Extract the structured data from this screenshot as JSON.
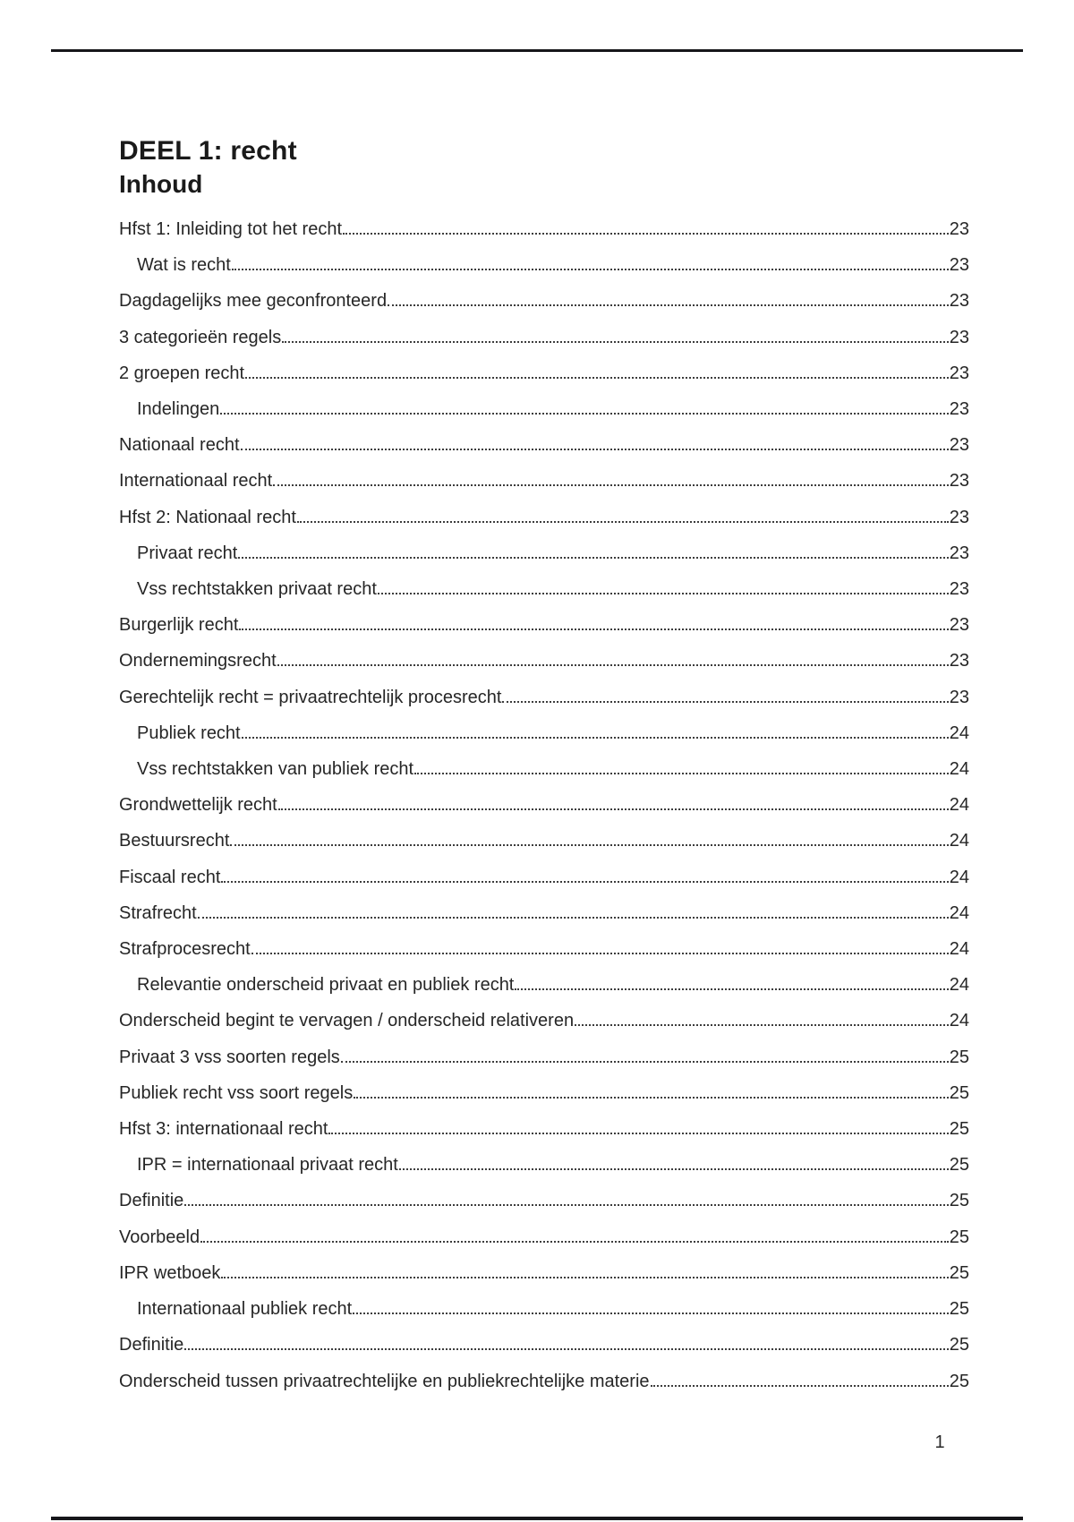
{
  "document": {
    "title": "DEEL 1: recht",
    "toc_heading": "Inhoud",
    "footer_page_number": "1"
  },
  "toc": {
    "entries": [
      {
        "label": "Hfst 1: Inleiding tot het recht",
        "page": "23",
        "level": 1
      },
      {
        "label": "Wat is recht",
        "page": "23",
        "level": 2
      },
      {
        "label": "Dagdagelijks mee geconfronteerd",
        "page": "23",
        "level": 1
      },
      {
        "label": "3 categorieën regels",
        "page": "23",
        "level": 1
      },
      {
        "label": "2 groepen recht",
        "page": "23",
        "level": 1
      },
      {
        "label": "Indelingen",
        "page": "23",
        "level": 2
      },
      {
        "label": "Nationaal recht",
        "page": "23",
        "level": 1
      },
      {
        "label": "Internationaal recht",
        "page": "23",
        "level": 1
      },
      {
        "label": "Hfst 2: Nationaal recht",
        "page": "23",
        "level": 1
      },
      {
        "label": "Privaat recht",
        "page": "23",
        "level": 2
      },
      {
        "label": "Vss rechtstakken privaat recht",
        "page": "23",
        "level": 2
      },
      {
        "label": "Burgerlijk recht",
        "page": "23",
        "level": 1
      },
      {
        "label": "Ondernemingsrecht",
        "page": "23",
        "level": 1
      },
      {
        "label": "Gerechtelijk recht = privaatrechtelijk procesrecht",
        "page": "23",
        "level": 1
      },
      {
        "label": "Publiek recht",
        "page": "24",
        "level": 2
      },
      {
        "label": "Vss rechtstakken van publiek recht",
        "page": "24",
        "level": 2
      },
      {
        "label": "Grondwettelijk recht",
        "page": "24",
        "level": 1
      },
      {
        "label": "Bestuursrecht",
        "page": "24",
        "level": 1
      },
      {
        "label": "Fiscaal recht",
        "page": "24",
        "level": 1
      },
      {
        "label": "Strafrecht",
        "page": "24",
        "level": 1
      },
      {
        "label": "Strafprocesrecht",
        "page": "24",
        "level": 1
      },
      {
        "label": "Relevantie onderscheid privaat en publiek recht",
        "page": "24",
        "level": 2
      },
      {
        "label": "Onderscheid begint te vervagen / onderscheid relativeren",
        "page": "24",
        "level": 1
      },
      {
        "label": "Privaat 3 vss soorten regels",
        "page": "25",
        "level": 1
      },
      {
        "label": "Publiek recht vss soort regels",
        "page": "25",
        "level": 1
      },
      {
        "label": "Hfst 3: internationaal recht",
        "page": "25",
        "level": 1
      },
      {
        "label": "IPR = internationaal privaat recht",
        "page": "25",
        "level": 2
      },
      {
        "label": "Definitie",
        "page": "25",
        "level": 1
      },
      {
        "label": "Voorbeeld",
        "page": "25",
        "level": 1
      },
      {
        "label": "IPR wetboek",
        "page": "25",
        "level": 1
      },
      {
        "label": "Internationaal publiek recht",
        "page": "25",
        "level": 2
      },
      {
        "label": "Definitie",
        "page": "25",
        "level": 1
      },
      {
        "label": "Onderscheid tussen privaatrechtelijke en publiekrechtelijke materie",
        "page": "25",
        "level": 1
      }
    ]
  }
}
